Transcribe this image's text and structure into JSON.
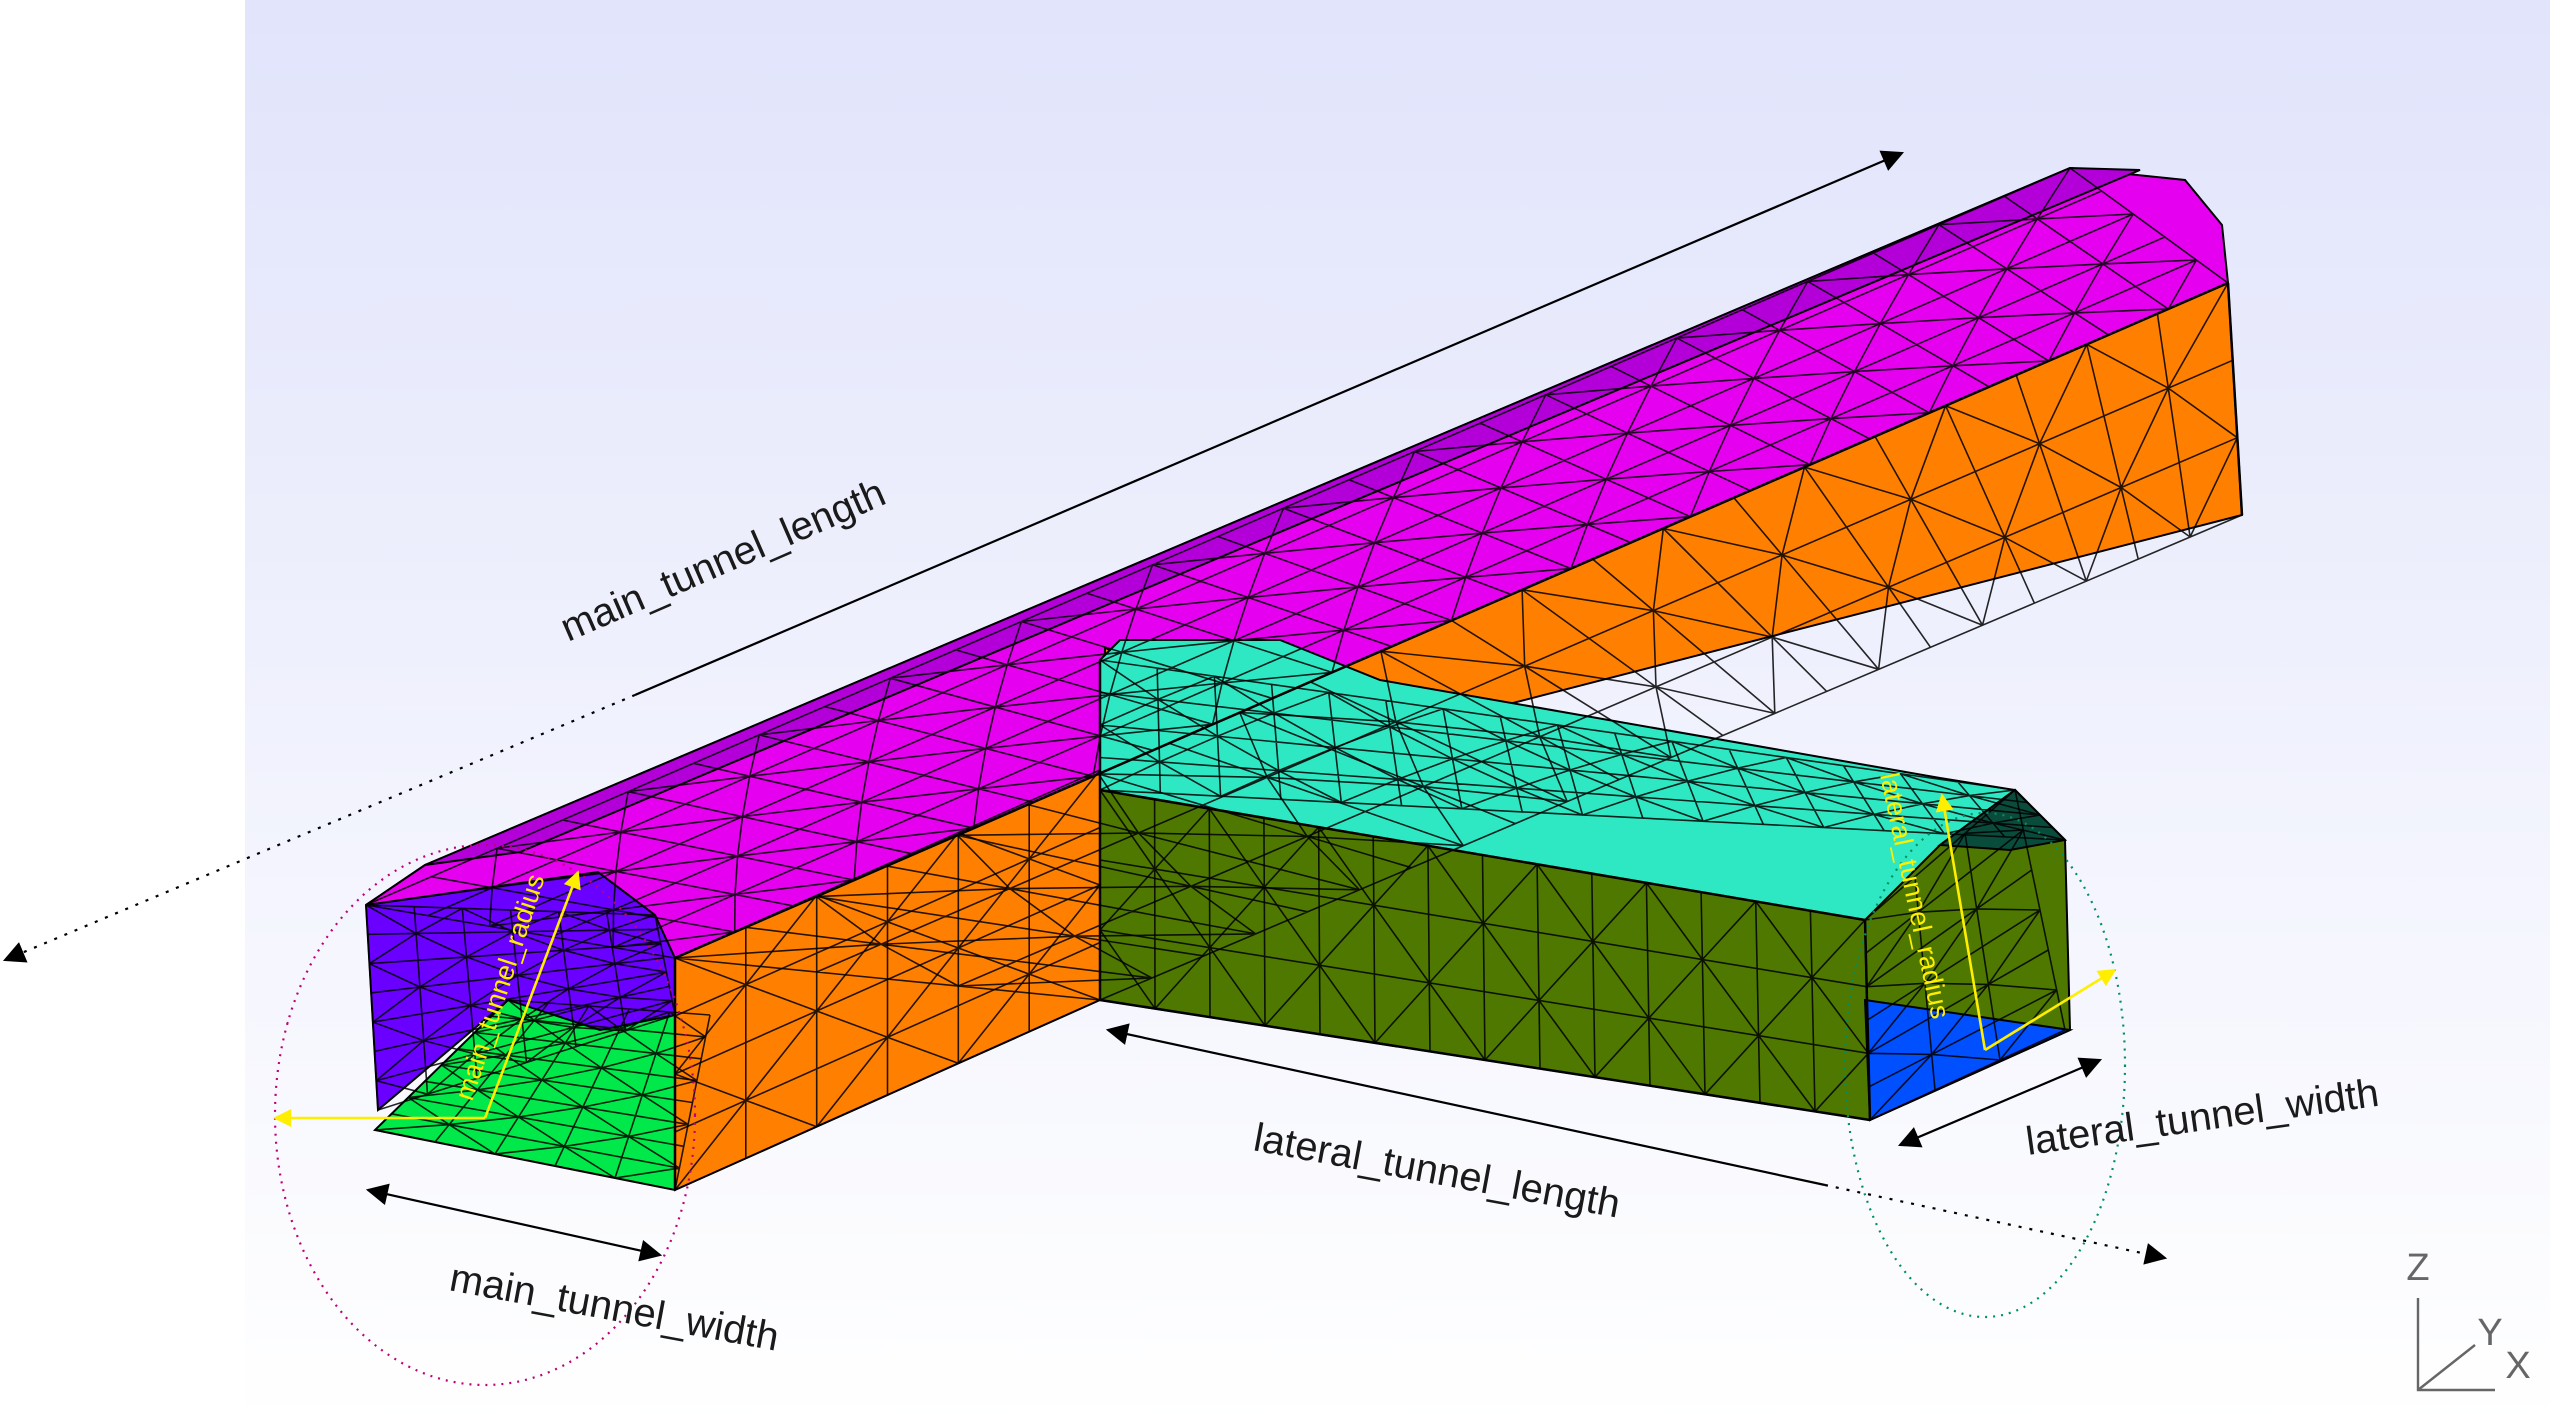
{
  "labels": {
    "main_tunnel_length": "main_tunnel_length",
    "main_tunnel_width": "main_tunnel_width",
    "main_tunnel_radius": "main_tunnel_radius",
    "lateral_tunnel_length": "lateral_tunnel_length",
    "lateral_tunnel_width": "lateral_tunnel_width",
    "lateral_tunnel_radius": "lateral_tunnel_radius"
  },
  "axes": {
    "z": "Z",
    "y": "Y",
    "x": "X"
  },
  "colors": {
    "main_roof": "#e600f0",
    "main_roof_shade": "#b300d9",
    "main_wall": "#ff8000",
    "main_end": "#6a00ff",
    "main_floor": "#00e84a",
    "lateral_roof": "#2ee8c4",
    "lateral_wall": "#4f7800",
    "lateral_end_wall": "#4f7800",
    "lateral_floor": "#0050ff",
    "lateral_cap_shade": "#0a4c3c",
    "radius_annotation": "#ffee00",
    "dimension_line": "#000000",
    "main_ellipse": "#c0007a",
    "lateral_ellipse": "#009060"
  }
}
